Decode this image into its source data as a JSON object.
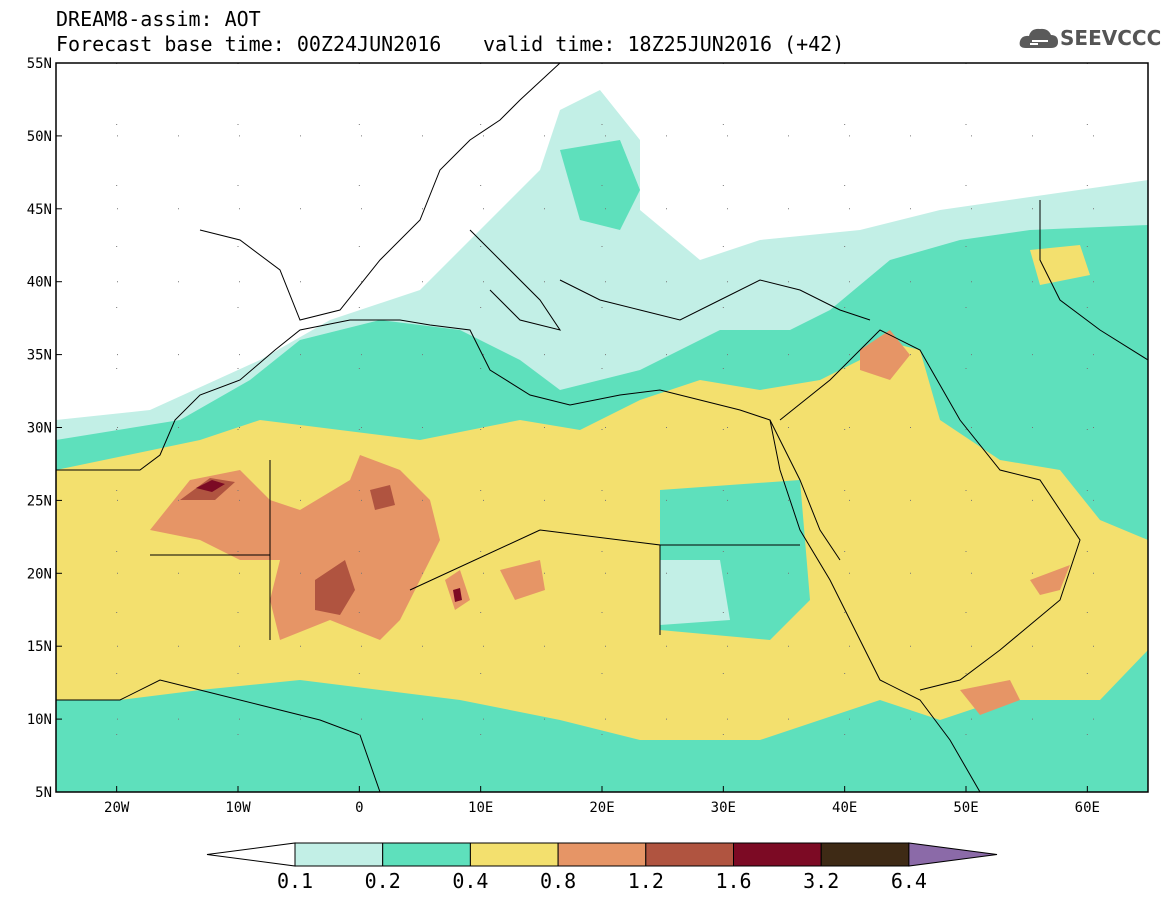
{
  "header": {
    "line1": "DREAM8-assim: AOT",
    "line2": "Forecast base time: 00Z24JUN2016",
    "line3": "valid time: 18Z25JUN2016 (+42)",
    "logo_text": "SEEVCCC",
    "logo_icon": "cloud-icon"
  },
  "map": {
    "lon_range": [
      -25,
      65
    ],
    "lat_range": [
      5,
      55
    ],
    "lat_labels": [
      "55N",
      "50N",
      "45N",
      "40N",
      "35N",
      "30N",
      "25N",
      "20N",
      "15N",
      "10N",
      "5N"
    ],
    "lat_values": [
      55,
      50,
      45,
      40,
      35,
      30,
      25,
      20,
      15,
      10,
      5
    ],
    "lon_labels": [
      "20W",
      "10W",
      "0",
      "10E",
      "20E",
      "30E",
      "40E",
      "50E",
      "60E"
    ],
    "lon_values": [
      -20,
      -10,
      0,
      10,
      20,
      30,
      40,
      50,
      60
    ]
  },
  "colorbar": {
    "colors": [
      "#ffffff",
      "#c2efe6",
      "#5ee0bc",
      "#f3e06e",
      "#e69566",
      "#b05440",
      "#7c0a24",
      "#3e2a15",
      "#8b6aa8"
    ],
    "labels": [
      "0.1",
      "0.2",
      "0.4",
      "0.8",
      "1.2",
      "1.6",
      "3.2",
      "6.4"
    ]
  }
}
